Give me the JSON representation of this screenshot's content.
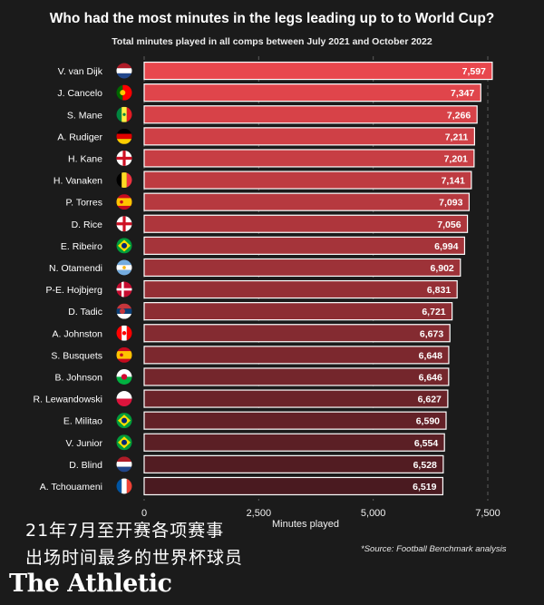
{
  "chart_data": {
    "type": "bar",
    "orientation": "horizontal",
    "title": "Who had the most minutes in the legs leading up to to World Cup?",
    "subtitle": "Total minutes played in all comps between July 2021 and October 2022",
    "xlabel": "Minutes played",
    "xlim": [
      0,
      7500
    ],
    "xticks": [
      0,
      2500,
      5000,
      7500
    ],
    "xtick_labels": [
      "0",
      "2,500",
      "5,000",
      "7,500"
    ],
    "grid": "vertical-dashed",
    "categories": [
      "V. van Dijk",
      "J. Cancelo",
      "S. Mane",
      "A. Rudiger",
      "H. Kane",
      "H. Vanaken",
      "P. Torres",
      "D. Rice",
      "E. Ribeiro",
      "N. Otamendi",
      "P-E. Hojbjerg",
      "D. Tadic",
      "A. Johnston",
      "S. Busquets",
      "B. Johnson",
      "R. Lewandowski",
      "E. Militao",
      "V. Junior",
      "D. Blind",
      "A. Tchouameni"
    ],
    "values": [
      7597,
      7347,
      7266,
      7211,
      7201,
      7141,
      7093,
      7056,
      6994,
      6902,
      6831,
      6721,
      6673,
      6648,
      6646,
      6627,
      6590,
      6554,
      6528,
      6519
    ],
    "value_labels": [
      "7,597",
      "7,347",
      "7,266",
      "7,211",
      "7,201",
      "7,141",
      "7,093",
      "7,056",
      "6,994",
      "6,902",
      "6,831",
      "6,721",
      "6,673",
      "6,648",
      "6,646",
      "6,627",
      "6,590",
      "6,554",
      "6,528",
      "6,519"
    ],
    "flags": [
      "netherlands",
      "portugal",
      "senegal",
      "germany",
      "england",
      "belgium",
      "spain",
      "england",
      "brazil",
      "argentina",
      "denmark",
      "serbia",
      "canada",
      "spain",
      "wales",
      "poland",
      "brazil",
      "brazil",
      "netherlands",
      "france"
    ],
    "bar_color_top": "#e8474d",
    "bar_color_bottom": "#4a1a20",
    "bar_outline": "#ffffff"
  },
  "overlay": {
    "line1": "21年7月至开赛各项赛事",
    "line2": "出场时间最多的世界杯球员"
  },
  "source": "*Source: Football Benchmark analysis",
  "brand": "The Athletic"
}
